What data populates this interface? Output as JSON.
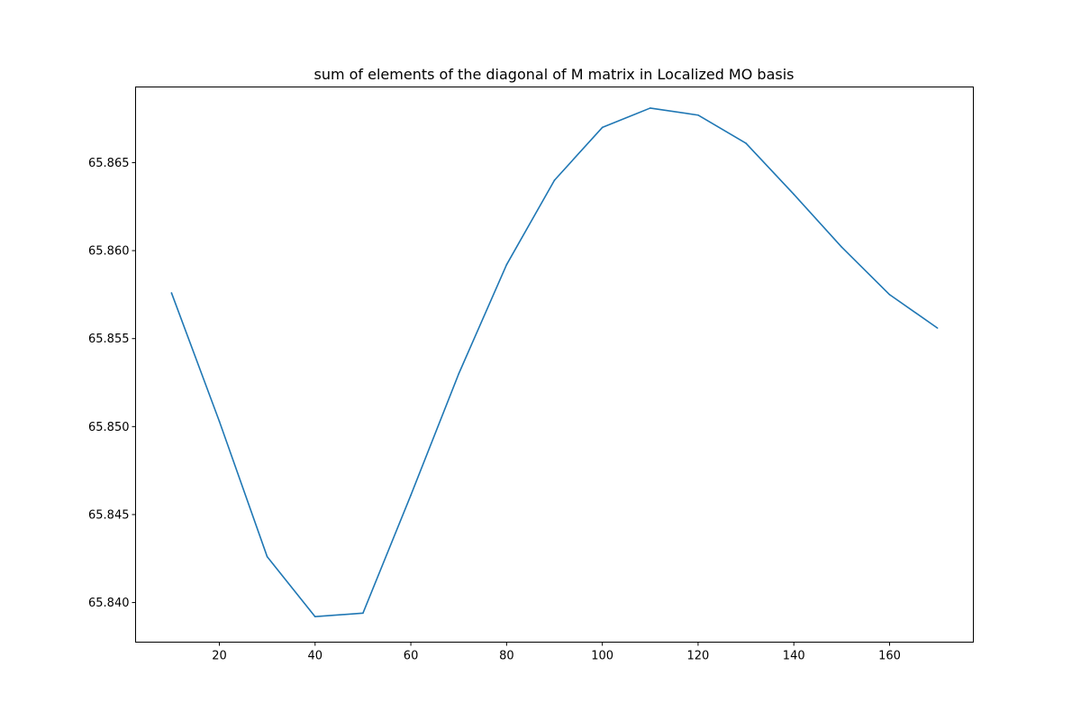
{
  "chart_data": {
    "type": "line",
    "title": "sum of elements of the diagonal of M matrix in Localized MO basis",
    "xlabel": "",
    "ylabel": "",
    "xlim": [
      2.5,
      177.5
    ],
    "ylim": [
      65.83775,
      65.8693
    ],
    "grid": false,
    "legend": "none",
    "x_ticks": [
      {
        "value": 20,
        "label": "20"
      },
      {
        "value": 40,
        "label": "40"
      },
      {
        "value": 60,
        "label": "60"
      },
      {
        "value": 80,
        "label": "80"
      },
      {
        "value": 100,
        "label": "100"
      },
      {
        "value": 120,
        "label": "120"
      },
      {
        "value": 140,
        "label": "140"
      },
      {
        "value": 160,
        "label": "160"
      }
    ],
    "y_ticks": [
      {
        "value": 65.84,
        "label": "65.840"
      },
      {
        "value": 65.845,
        "label": "65.845"
      },
      {
        "value": 65.85,
        "label": "65.850"
      },
      {
        "value": 65.855,
        "label": "65.855"
      },
      {
        "value": 65.86,
        "label": "65.860"
      },
      {
        "value": 65.865,
        "label": "65.865"
      }
    ],
    "series": [
      {
        "color": "#1f77b4",
        "x": [
          10,
          20,
          30,
          40,
          50,
          60,
          70,
          80,
          90,
          100,
          110,
          120,
          130,
          140,
          150,
          160,
          170
        ],
        "y": [
          65.8576,
          65.8503,
          65.8426,
          65.8392,
          65.8394,
          65.8461,
          65.853,
          65.8592,
          65.864,
          65.867,
          65.8681,
          65.8677,
          65.8661,
          65.8632,
          65.8602,
          65.8575,
          65.8556
        ]
      }
    ]
  }
}
